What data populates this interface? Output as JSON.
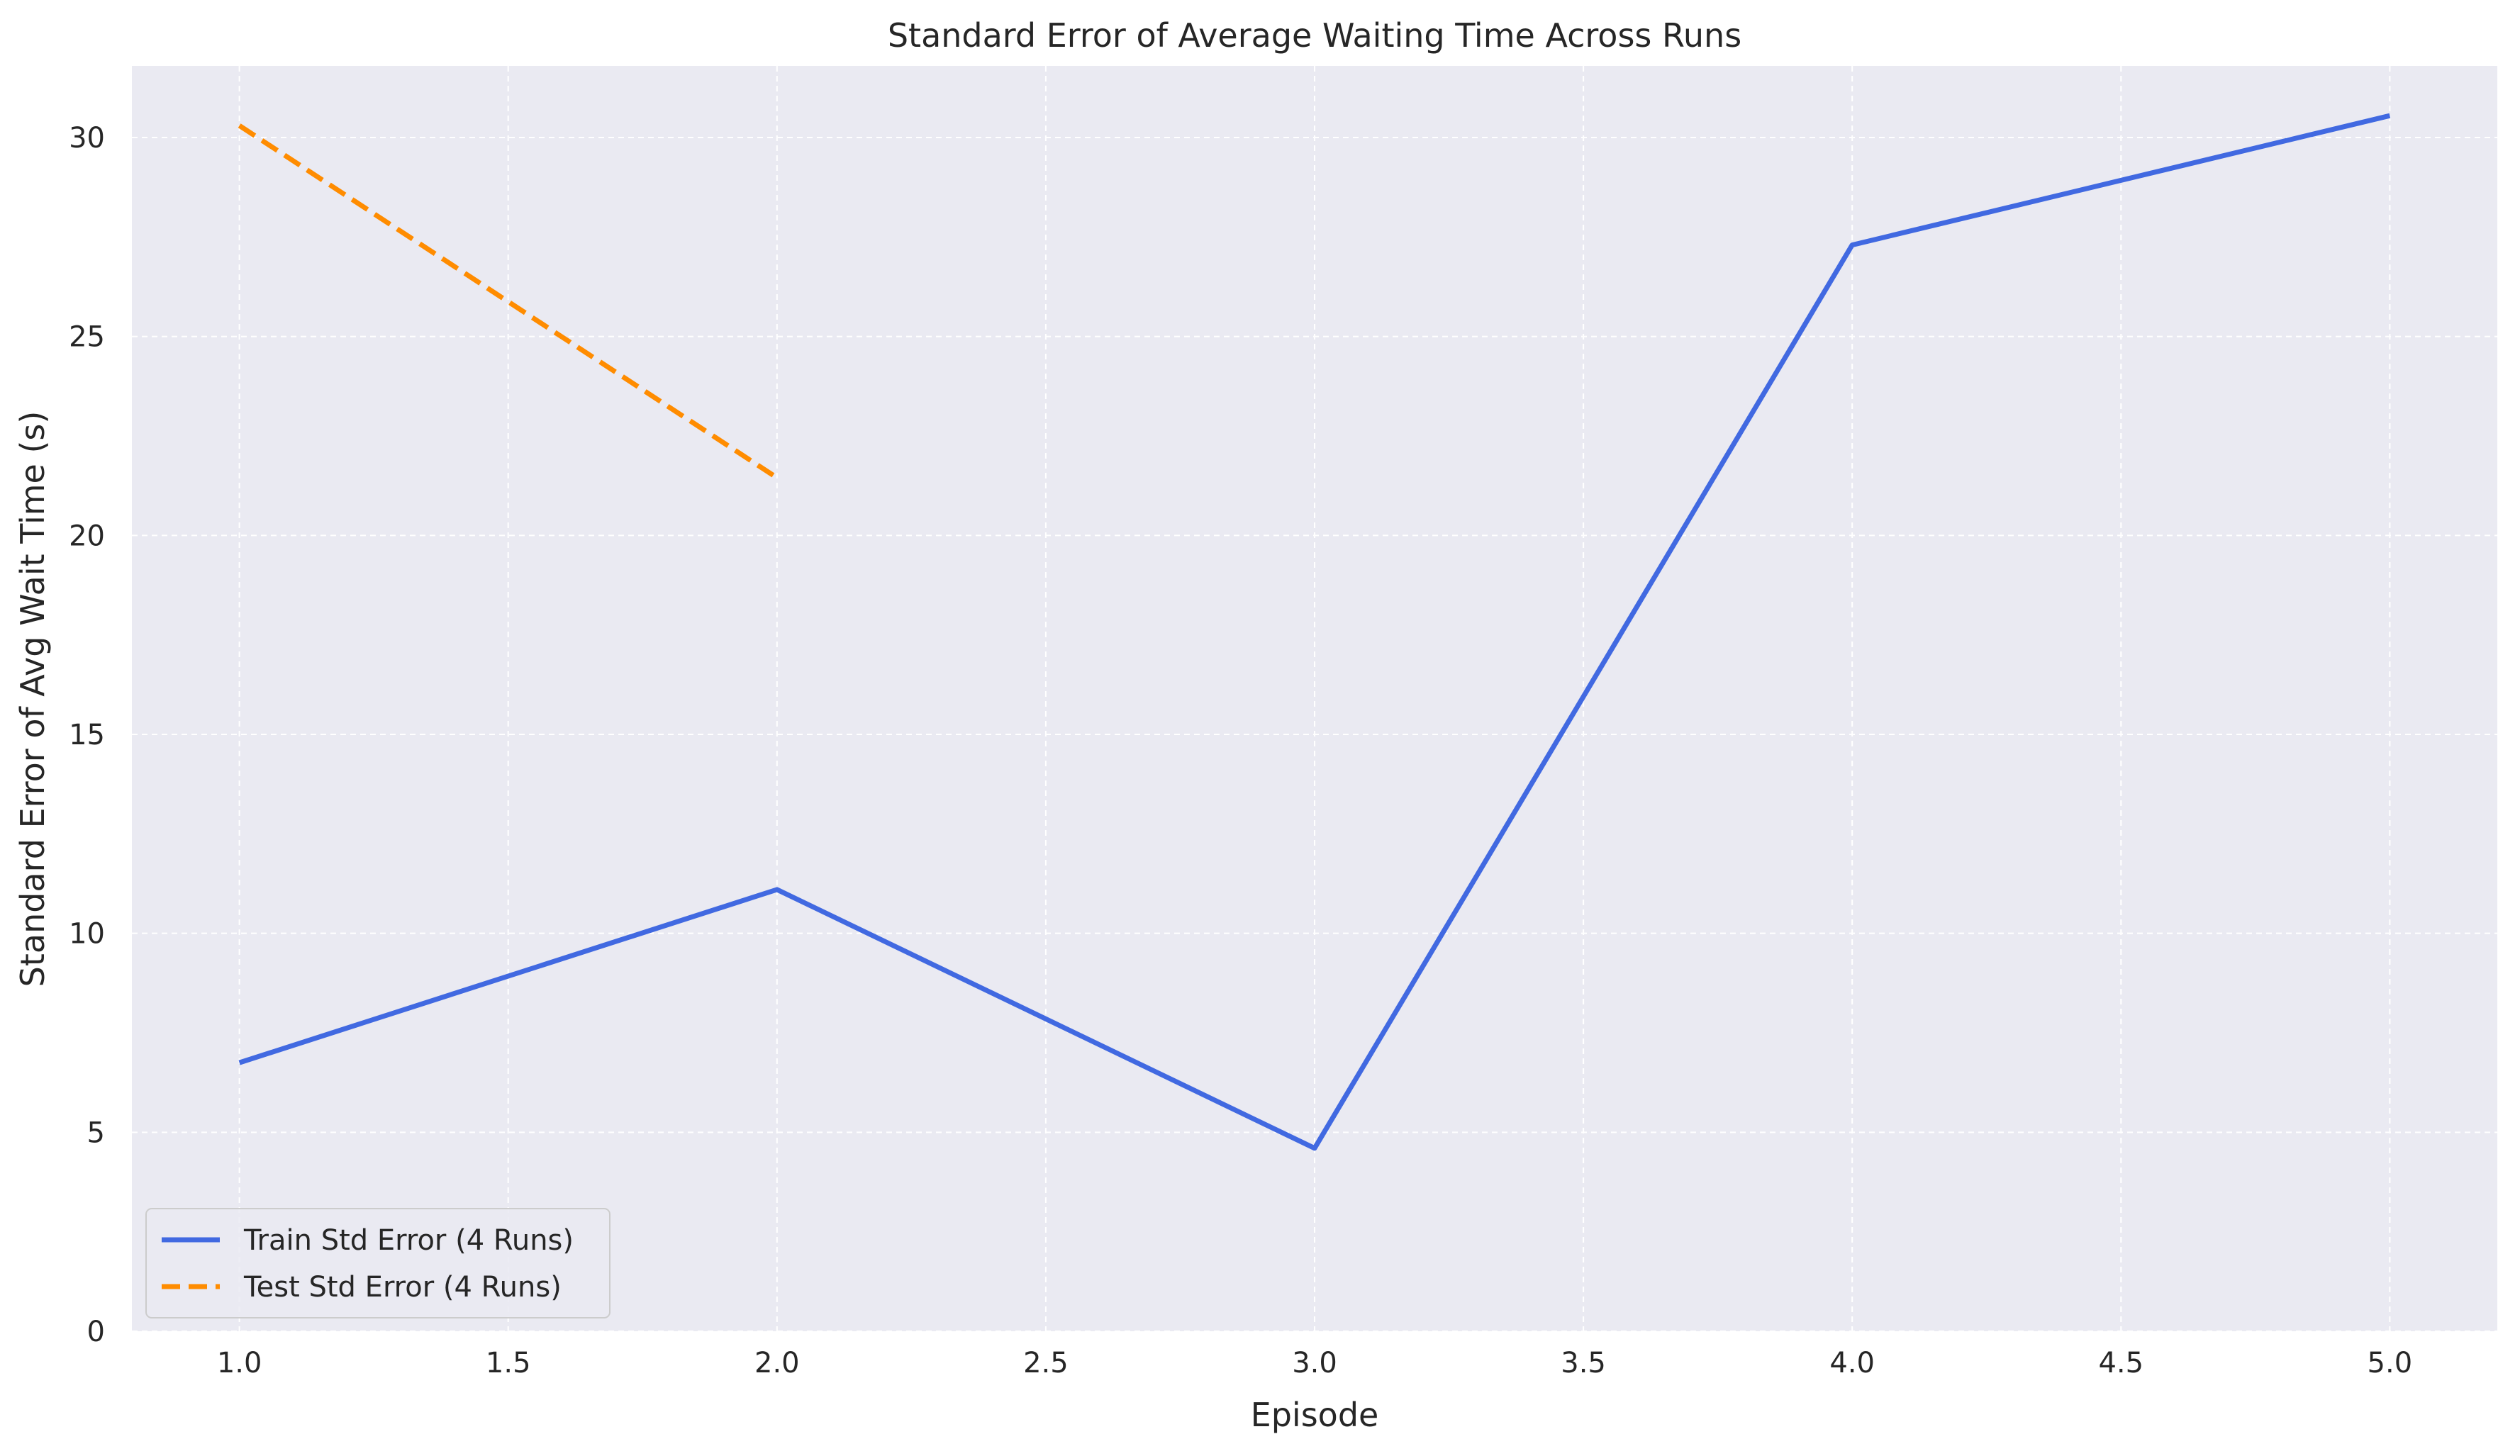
{
  "chart_data": {
    "type": "line",
    "title": "Standard Error of Average Waiting Time Across Runs",
    "xlabel": "Episode",
    "ylabel": "Standard Error of Avg Wait Time (s)",
    "xlim": [
      0.8,
      5.2
    ],
    "ylim": [
      0,
      31.8
    ],
    "xticks": [
      1.0,
      1.5,
      2.0,
      2.5,
      3.0,
      3.5,
      4.0,
      4.5,
      5.0
    ],
    "xtick_labels": [
      "1.0",
      "1.5",
      "2.0",
      "2.5",
      "3.0",
      "3.5",
      "4.0",
      "4.5",
      "5.0"
    ],
    "yticks": [
      0,
      5,
      10,
      15,
      20,
      25,
      30
    ],
    "ytick_labels": [
      "0",
      "5",
      "10",
      "15",
      "20",
      "25",
      "30"
    ],
    "grid": true,
    "legend_position": "lower-left",
    "series": [
      {
        "name": "Train Std Error (4 Runs)",
        "color": "#4169E1",
        "dash": "solid",
        "x": [
          1,
          2,
          3,
          4,
          5
        ],
        "y": [
          6.75,
          11.1,
          4.6,
          27.3,
          30.55
        ]
      },
      {
        "name": "Test Std Error (4 Runs)",
        "color": "#FF8C00",
        "dash": "dashed",
        "x": [
          1,
          2
        ],
        "y": [
          30.3,
          21.45
        ]
      }
    ]
  }
}
